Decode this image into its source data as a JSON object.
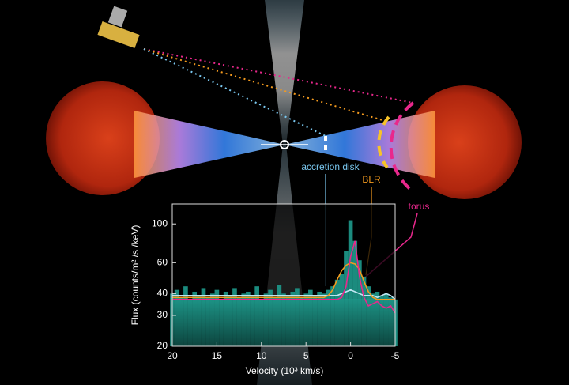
{
  "chart_data": {
    "type": "bar",
    "xlabel": "Velocity (10³ km/s)",
    "ylabel": "Flux (counts/m² /s /keV)",
    "xlim": [
      20,
      -5
    ],
    "xticks": [
      20,
      15,
      10,
      5,
      0,
      -5
    ],
    "ylim": [
      20,
      130
    ],
    "yticks": [
      20,
      30,
      40,
      60,
      100
    ],
    "log_y": true,
    "x": [
      20,
      19.5,
      19,
      18.5,
      18,
      17.5,
      17,
      16.5,
      16,
      15.5,
      15,
      14.5,
      14,
      13.5,
      13,
      12.5,
      12,
      11.5,
      11,
      10.5,
      10,
      9.5,
      9,
      8.5,
      8,
      7.5,
      7,
      6.5,
      6,
      5.5,
      5,
      4.5,
      4,
      3.5,
      3,
      2.5,
      2,
      1.5,
      1,
      0.5,
      0,
      -0.5,
      -1,
      -1.5,
      -2,
      -2.5,
      -3,
      -3.5,
      -4,
      -4.5,
      -5
    ],
    "series": [
      {
        "color": "#1e9a8c",
        "values": [
          40,
          42,
          38,
          44,
          37,
          41,
          39,
          43,
          38,
          40,
          42,
          37,
          41,
          39,
          43,
          38,
          40,
          41,
          39,
          44,
          37,
          40,
          42,
          38,
          45,
          40,
          39,
          41,
          43,
          38,
          40,
          42,
          39,
          41,
          40,
          42,
          44,
          48,
          52,
          70,
          105,
          80,
          62,
          50,
          44,
          40,
          41,
          39,
          40,
          38,
          37
        ]
      },
      {
        "name": "accretion disk",
        "type": "line",
        "color": "#bfe6f2",
        "values": [
          39,
          39,
          39,
          39,
          39,
          39,
          39,
          39,
          39,
          39,
          39,
          39,
          39,
          39,
          39,
          39,
          39,
          39,
          39,
          39,
          39,
          39,
          39,
          39,
          39,
          39,
          39,
          39,
          39,
          39,
          39,
          39,
          39,
          39,
          39,
          39,
          39,
          39,
          40,
          41,
          42,
          41,
          40,
          39,
          39,
          39,
          38,
          39,
          40,
          39,
          37
        ]
      },
      {
        "name": "BLR",
        "type": "line",
        "color": "#f39a1e",
        "values": [
          38,
          38,
          38,
          38,
          38,
          38,
          38,
          38,
          38,
          38,
          38,
          38,
          38,
          38,
          38,
          38,
          38,
          38,
          38,
          38,
          38,
          38,
          38,
          38,
          38,
          38,
          38,
          38,
          38,
          38,
          38,
          38,
          38,
          38,
          38,
          39,
          42,
          48,
          54,
          58,
          60,
          59,
          55,
          47,
          41,
          38,
          37,
          37,
          37,
          37,
          37
        ]
      },
      {
        "name": "torus",
        "type": "line",
        "color": "#e8288c",
        "values": [
          37,
          37,
          37,
          37,
          37,
          37,
          37,
          37,
          37,
          37,
          37,
          37,
          37,
          37,
          37,
          37,
          37,
          37,
          37,
          37,
          37,
          37,
          37,
          37,
          37,
          37,
          37,
          37,
          37,
          37,
          37,
          37,
          37,
          37,
          37,
          37,
          37,
          37,
          38,
          44,
          65,
          80,
          50,
          38,
          34,
          35,
          36,
          34,
          33,
          34,
          31
        ]
      }
    ]
  }
}
